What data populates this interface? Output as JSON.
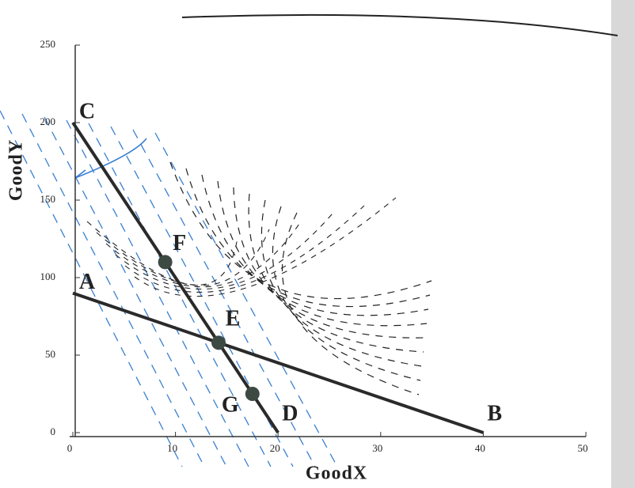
{
  "chart_data": {
    "type": "line",
    "x_label": "GoodX",
    "y_label": "GoodY",
    "xlim": [
      0,
      50
    ],
    "xticks": [
      0,
      10,
      20,
      30,
      40,
      50
    ],
    "ylim": [
      0,
      250
    ],
    "yticks": [
      0,
      50,
      100,
      150,
      200,
      250
    ],
    "series": [
      {
        "x": [
          0,
          40
        ],
        "values": [
          90,
          0
        ],
        "labels": [
          "A",
          "B"
        ],
        "color": "#2a2a2a"
      },
      {
        "x": [
          0,
          20
        ],
        "values": [
          200,
          0
        ],
        "labels": [
          "C",
          "D"
        ],
        "color": "#2a2a2a"
      }
    ],
    "points": {
      "x": [
        9,
        14.2,
        17.5
      ],
      "values": [
        110,
        58,
        25
      ],
      "labels": [
        "F",
        "E",
        "G"
      ],
      "color": "#3d4a44"
    }
  }
}
